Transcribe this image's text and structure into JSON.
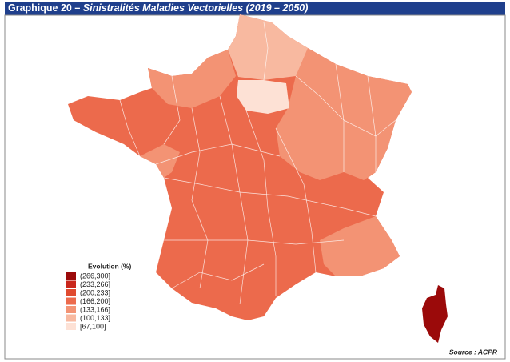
{
  "header": {
    "title_prefix": "Graphique 20 – ",
    "title_main": "Sinistralités Maladies Vectorielles (2019 – 2050)"
  },
  "legend": {
    "title": "Evolution (%)",
    "items": [
      {
        "label": "(266,300]",
        "color": "#9b0a0a"
      },
      {
        "label": "(233,266]",
        "color": "#c9271c"
      },
      {
        "label": "(200,233]",
        "color": "#e04a2f"
      },
      {
        "label": "(166,200]",
        "color": "#ec6a4c"
      },
      {
        "label": "(133,166]",
        "color": "#f39374"
      },
      {
        "label": "(100,133]",
        "color": "#f8b9a0"
      },
      {
        "label": "[67,100]",
        "color": "#fde1d5"
      }
    ]
  },
  "source": "Source : ACPR"
}
